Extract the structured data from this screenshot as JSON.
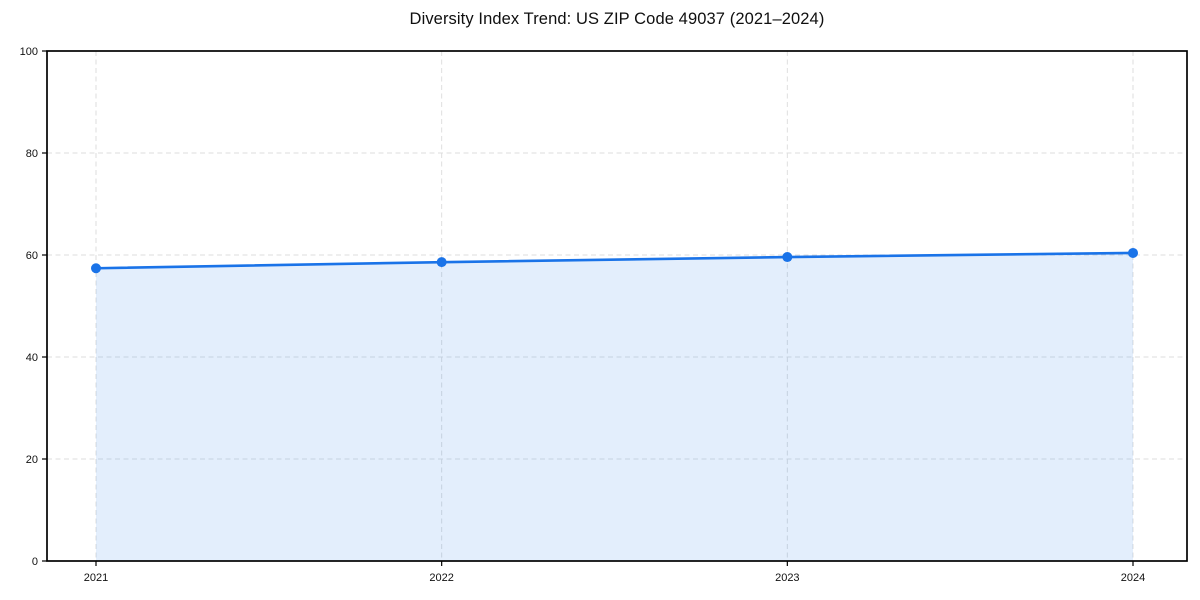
{
  "chart_data": {
    "type": "line",
    "title": "Diversity Index Trend: US ZIP Code 49037 (2021–2024)",
    "x": [
      "2021",
      "2022",
      "2023",
      "2024"
    ],
    "series": [
      {
        "name": "Diversity Index",
        "values": [
          57.4,
          58.6,
          59.6,
          60.4
        ]
      }
    ],
    "xlabel": "",
    "ylabel": "",
    "ylim": [
      0,
      100
    ],
    "yticks": [
      0,
      20,
      40,
      60,
      80,
      100
    ],
    "grid": true,
    "grid_style": "dashed",
    "legend_position": "none",
    "line_color": "#1a73e8",
    "fill_color": "rgba(26,115,232,0.12)",
    "grid_color": "#dedede",
    "axis_color": "#000000",
    "tick_label_color": "#111111",
    "marker": "circle"
  }
}
